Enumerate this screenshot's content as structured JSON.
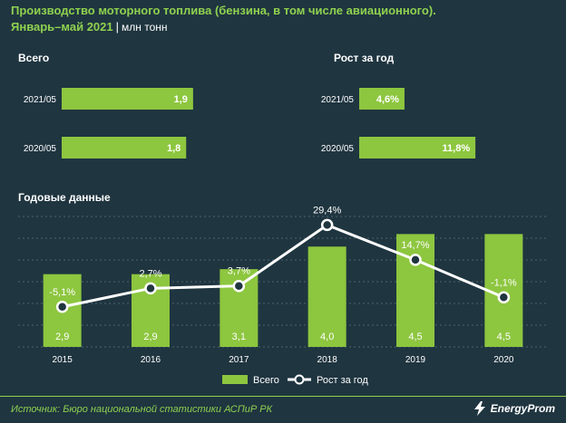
{
  "header": {
    "title": "Производство моторного топлива (бензина, в том числе авиационного).",
    "subtitle": "Январь–май 2021",
    "separator": "|",
    "unit": "млн тонн"
  },
  "panels": {
    "total_label": "Всего",
    "growth_label": "Рост за год",
    "annual_label": "Годовые данные"
  },
  "chart_data": [
    {
      "type": "bar",
      "orientation": "horizontal",
      "title": "Всего",
      "categories": [
        "2021/05",
        "2020/05"
      ],
      "values": [
        1.9,
        1.8
      ],
      "value_labels": [
        "1,9",
        "1,8"
      ],
      "xlim": [
        0,
        3.2
      ]
    },
    {
      "type": "bar",
      "orientation": "horizontal",
      "title": "Рост за год",
      "categories": [
        "2021/05",
        "2020/05"
      ],
      "values": [
        4.6,
        11.8
      ],
      "value_labels": [
        "4,6%",
        "11,8%"
      ],
      "xlim": [
        0,
        21
      ]
    },
    {
      "type": "bar+line",
      "title": "Годовые данные",
      "categories": [
        "2015",
        "2016",
        "2017",
        "2018",
        "2019",
        "2020"
      ],
      "series": [
        {
          "name": "Всего",
          "type": "bar",
          "values": [
            2.9,
            2.9,
            3.1,
            4.0,
            4.5,
            4.5
          ],
          "value_labels": [
            "2,9",
            "2,9",
            "3,1",
            "4,0",
            "4,5",
            "4,5"
          ]
        },
        {
          "name": "Рост за год",
          "type": "line",
          "values": [
            -5.1,
            2.7,
            3.7,
            29.4,
            14.7,
            -1.1
          ],
          "value_labels": [
            "-5,1%",
            "2,7%",
            "3,7%",
            "29,4%",
            "14,7%",
            "-1,1%"
          ]
        }
      ],
      "bar_ylim": [
        0,
        5.2
      ],
      "line_ylim": [
        -22,
        33
      ],
      "legend": "bottom-center",
      "grid": true
    }
  ],
  "footer": {
    "source": "Источник: Бюро национальной  статистики АСПиР РК",
    "brand": "EnergyProm",
    "brand_icon": "lightning-icon"
  },
  "colors": {
    "background": "#1f3540",
    "bar": "#8dc63f",
    "title": "#8fd14f",
    "line": "#ffffff",
    "grid": "#4d6570"
  }
}
